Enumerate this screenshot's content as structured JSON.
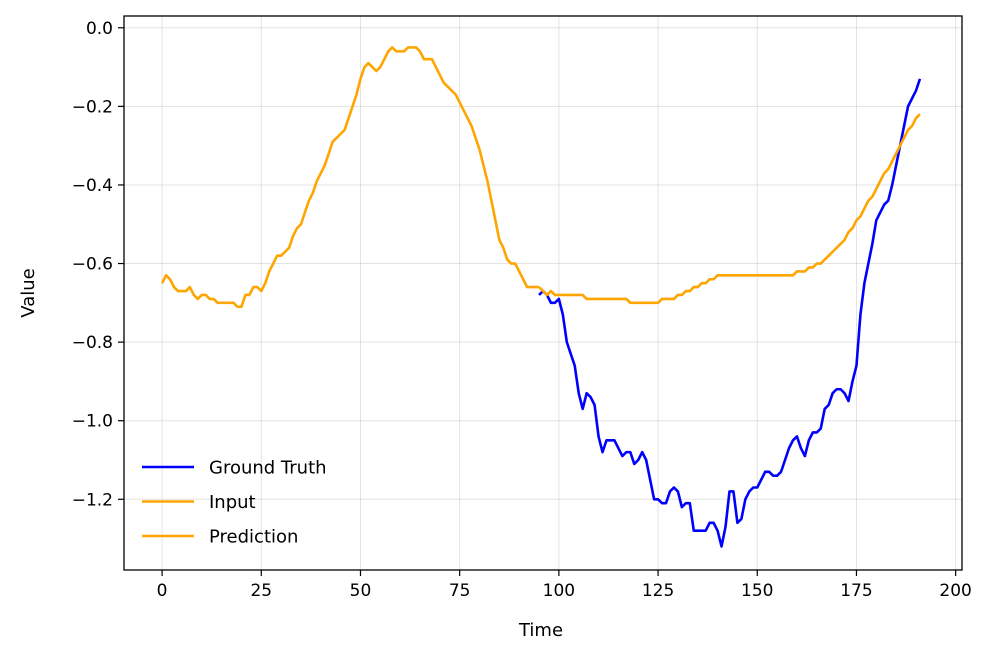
{
  "chart_data": {
    "type": "line",
    "xlabel": "Time",
    "ylabel": "Value",
    "xlim": [
      -9.6,
      201.6
    ],
    "ylim": [
      -1.38,
      0.03
    ],
    "xticks": [
      0,
      25,
      50,
      75,
      100,
      125,
      150,
      175,
      200
    ],
    "yticks": [
      0.0,
      -0.2,
      -0.4,
      -0.6,
      -0.8,
      -1.0,
      -1.2
    ],
    "ytick_labels": [
      "0.0",
      "−0.2",
      "−0.4",
      "−0.6",
      "−0.8",
      "−1.0",
      "−1.2"
    ],
    "grid": true,
    "legend_position": "lower-left",
    "series": [
      {
        "name": "Ground Truth",
        "color": "#0000ff",
        "x": [
          95,
          96,
          97,
          98,
          99,
          100,
          101,
          102,
          103,
          104,
          105,
          106,
          107,
          108,
          109,
          110,
          111,
          112,
          113,
          114,
          115,
          116,
          117,
          118,
          119,
          120,
          121,
          122,
          123,
          124,
          125,
          126,
          127,
          128,
          129,
          130,
          131,
          132,
          133,
          134,
          135,
          136,
          137,
          138,
          139,
          140,
          141,
          142,
          143,
          144,
          145,
          146,
          147,
          148,
          149,
          150,
          151,
          152,
          153,
          154,
          155,
          156,
          157,
          158,
          159,
          160,
          161,
          162,
          163,
          164,
          165,
          166,
          167,
          168,
          169,
          170,
          171,
          172,
          173,
          174,
          175,
          176,
          177,
          178,
          179,
          180,
          181,
          182,
          183,
          184,
          185,
          186,
          187,
          188,
          189,
          190,
          191
        ],
        "y": [
          -0.68,
          -0.67,
          -0.68,
          -0.7,
          -0.7,
          -0.69,
          -0.73,
          -0.8,
          -0.83,
          -0.86,
          -0.93,
          -0.97,
          -0.93,
          -0.94,
          -0.96,
          -1.04,
          -1.08,
          -1.05,
          -1.05,
          -1.05,
          -1.07,
          -1.09,
          -1.08,
          -1.08,
          -1.11,
          -1.1,
          -1.08,
          -1.1,
          -1.15,
          -1.2,
          -1.2,
          -1.21,
          -1.21,
          -1.18,
          -1.17,
          -1.18,
          -1.22,
          -1.21,
          -1.21,
          -1.28,
          -1.28,
          -1.28,
          -1.28,
          -1.26,
          -1.26,
          -1.28,
          -1.32,
          -1.27,
          -1.18,
          -1.18,
          -1.26,
          -1.25,
          -1.2,
          -1.18,
          -1.17,
          -1.17,
          -1.15,
          -1.13,
          -1.13,
          -1.14,
          -1.14,
          -1.13,
          -1.1,
          -1.07,
          -1.05,
          -1.04,
          -1.07,
          -1.09,
          -1.05,
          -1.03,
          -1.03,
          -1.02,
          -0.97,
          -0.96,
          -0.93,
          -0.92,
          -0.92,
          -0.93,
          -0.95,
          -0.9,
          -0.86,
          -0.73,
          -0.65,
          -0.6,
          -0.55,
          -0.49,
          -0.47,
          -0.45,
          -0.44,
          -0.4,
          -0.35,
          -0.3,
          -0.25,
          -0.2,
          -0.18,
          -0.16,
          -0.13
        ]
      },
      {
        "name": "Input",
        "color": "#ffa500",
        "x": [
          0,
          1,
          2,
          3,
          4,
          5,
          6,
          7,
          8,
          9,
          10,
          11,
          12,
          13,
          14,
          15,
          16,
          17,
          18,
          19,
          20,
          21,
          22,
          23,
          24,
          25,
          26,
          27,
          28,
          29,
          30,
          31,
          32,
          33,
          34,
          35,
          36,
          37,
          38,
          39,
          40,
          41,
          42,
          43,
          44,
          45,
          46,
          47,
          48,
          49,
          50,
          51,
          52,
          53,
          54,
          55,
          56,
          57,
          58,
          59,
          60,
          61,
          62,
          63,
          64,
          65,
          66,
          67,
          68,
          69,
          70,
          71,
          72,
          73,
          74,
          75,
          76,
          77,
          78,
          79,
          80,
          81,
          82,
          83,
          84,
          85,
          86,
          87,
          88,
          89,
          90,
          91,
          92,
          93,
          94,
          95
        ],
        "y": [
          -0.65,
          -0.63,
          -0.64,
          -0.66,
          -0.67,
          -0.67,
          -0.67,
          -0.66,
          -0.68,
          -0.69,
          -0.68,
          -0.68,
          -0.69,
          -0.69,
          -0.7,
          -0.7,
          -0.7,
          -0.7,
          -0.7,
          -0.71,
          -0.71,
          -0.68,
          -0.68,
          -0.66,
          -0.66,
          -0.67,
          -0.65,
          -0.62,
          -0.6,
          -0.58,
          -0.58,
          -0.57,
          -0.56,
          -0.53,
          -0.51,
          -0.5,
          -0.47,
          -0.44,
          -0.42,
          -0.39,
          -0.37,
          -0.35,
          -0.32,
          -0.29,
          -0.28,
          -0.27,
          -0.26,
          -0.23,
          -0.2,
          -0.17,
          -0.13,
          -0.1,
          -0.09,
          -0.1,
          -0.11,
          -0.1,
          -0.08,
          -0.06,
          -0.05,
          -0.06,
          -0.06,
          -0.06,
          -0.05,
          -0.05,
          -0.05,
          -0.06,
          -0.08,
          -0.08,
          -0.08,
          -0.1,
          -0.12,
          -0.14,
          -0.15,
          -0.16,
          -0.17,
          -0.19,
          -0.21,
          -0.23,
          -0.25,
          -0.28,
          -0.31,
          -0.35,
          -0.39,
          -0.44,
          -0.49,
          -0.54,
          -0.56,
          -0.59,
          -0.6,
          -0.6,
          -0.62,
          -0.64,
          -0.66,
          -0.66,
          -0.66,
          -0.66
        ]
      },
      {
        "name": "Prediction",
        "color": "#ffa500",
        "x": [
          95,
          96,
          97,
          98,
          99,
          100,
          101,
          102,
          103,
          104,
          105,
          106,
          107,
          108,
          109,
          110,
          111,
          112,
          113,
          114,
          115,
          116,
          117,
          118,
          119,
          120,
          121,
          122,
          123,
          124,
          125,
          126,
          127,
          128,
          129,
          130,
          131,
          132,
          133,
          134,
          135,
          136,
          137,
          138,
          139,
          140,
          141,
          142,
          143,
          144,
          145,
          146,
          147,
          148,
          149,
          150,
          151,
          152,
          153,
          154,
          155,
          156,
          157,
          158,
          159,
          160,
          161,
          162,
          163,
          164,
          165,
          166,
          167,
          168,
          169,
          170,
          171,
          172,
          173,
          174,
          175,
          176,
          177,
          178,
          179,
          180,
          181,
          182,
          183,
          184,
          185,
          186,
          187,
          188,
          189,
          190,
          191
        ],
        "y": [
          -0.66,
          -0.67,
          -0.68,
          -0.67,
          -0.68,
          -0.68,
          -0.68,
          -0.68,
          -0.68,
          -0.68,
          -0.68,
          -0.68,
          -0.69,
          -0.69,
          -0.69,
          -0.69,
          -0.69,
          -0.69,
          -0.69,
          -0.69,
          -0.69,
          -0.69,
          -0.69,
          -0.7,
          -0.7,
          -0.7,
          -0.7,
          -0.7,
          -0.7,
          -0.7,
          -0.7,
          -0.69,
          -0.69,
          -0.69,
          -0.69,
          -0.68,
          -0.68,
          -0.67,
          -0.67,
          -0.66,
          -0.66,
          -0.65,
          -0.65,
          -0.64,
          -0.64,
          -0.63,
          -0.63,
          -0.63,
          -0.63,
          -0.63,
          -0.63,
          -0.63,
          -0.63,
          -0.63,
          -0.63,
          -0.63,
          -0.63,
          -0.63,
          -0.63,
          -0.63,
          -0.63,
          -0.63,
          -0.63,
          -0.63,
          -0.63,
          -0.62,
          -0.62,
          -0.62,
          -0.61,
          -0.61,
          -0.6,
          -0.6,
          -0.59,
          -0.58,
          -0.57,
          -0.56,
          -0.55,
          -0.54,
          -0.52,
          -0.51,
          -0.49,
          -0.48,
          -0.46,
          -0.44,
          -0.43,
          -0.41,
          -0.39,
          -0.37,
          -0.36,
          -0.34,
          -0.32,
          -0.3,
          -0.28,
          -0.26,
          -0.25,
          -0.23,
          -0.22
        ]
      }
    ]
  }
}
